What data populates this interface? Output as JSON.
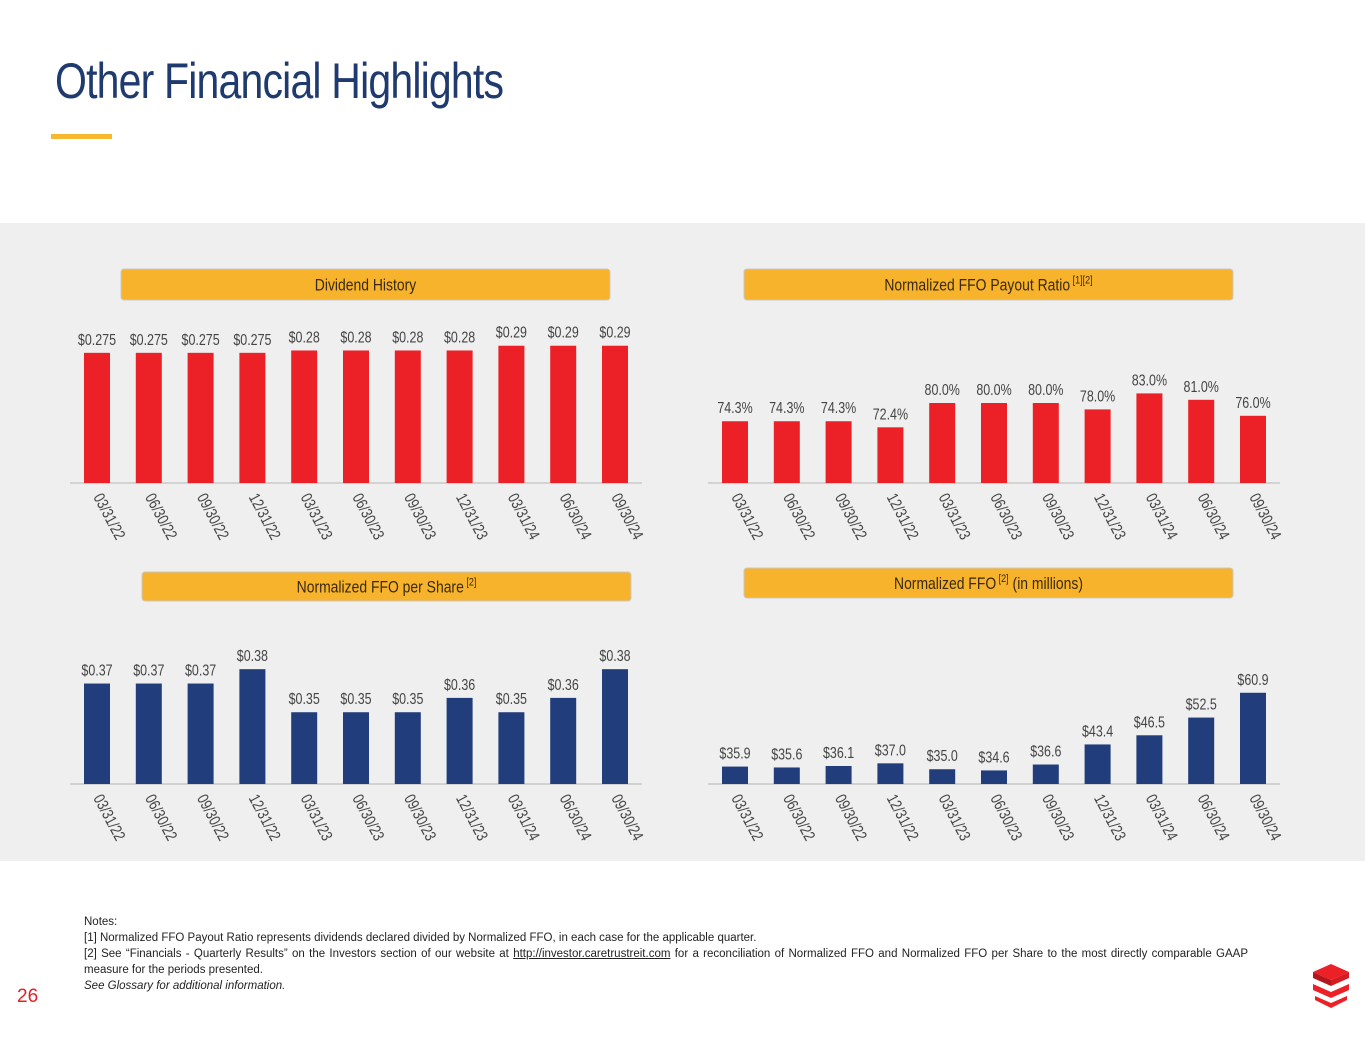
{
  "page": {
    "title": "Other Financial Highlights",
    "page_number": "26"
  },
  "colors": {
    "red": "#ec2127",
    "navy": "#223d7b",
    "gold": "#f7b32b",
    "title": "#1f3a6e"
  },
  "chart_data": [
    {
      "id": "dividend",
      "type": "bar",
      "title": "Dividend History",
      "sup": "",
      "suffix": "",
      "color": "red",
      "categories": [
        "03/31/22",
        "06/30/22",
        "09/30/22",
        "12/31/22",
        "03/31/23",
        "06/30/23",
        "09/30/23",
        "12/31/23",
        "03/31/24",
        "06/30/24",
        "09/30/24"
      ],
      "values": [
        0.275,
        0.275,
        0.275,
        0.275,
        0.28,
        0.28,
        0.28,
        0.28,
        0.29,
        0.29,
        0.29
      ],
      "labels": [
        "$0.275",
        "$0.275",
        "$0.275",
        "$0.275",
        "$0.28",
        "$0.28",
        "$0.28",
        "$0.28",
        "$0.29",
        "$0.29",
        "$0.29"
      ],
      "ylim": [
        0,
        0.3
      ]
    },
    {
      "id": "payout",
      "type": "bar",
      "title": "Normalized FFO Payout Ratio",
      "sup": "[1][2]",
      "suffix": "",
      "color": "red",
      "categories": [
        "03/31/22",
        "06/30/22",
        "09/30/22",
        "12/31/22",
        "03/31/23",
        "06/30/23",
        "09/30/23",
        "12/31/23",
        "03/31/24",
        "06/30/24",
        "09/30/24"
      ],
      "values": [
        74.3,
        74.3,
        74.3,
        72.4,
        80.0,
        80.0,
        80.0,
        78.0,
        83.0,
        81.0,
        76.0
      ],
      "labels": [
        "74.3%",
        "74.3%",
        "74.3%",
        "72.4%",
        "80.0%",
        "80.0%",
        "80.0%",
        "78.0%",
        "83.0%",
        "81.0%",
        "76.0%"
      ],
      "ylim": [
        55,
        85
      ]
    },
    {
      "id": "ffo_share",
      "type": "bar",
      "title": "Normalized FFO per Share",
      "sup": "[2]",
      "suffix": "",
      "color": "navy",
      "categories": [
        "03/31/22",
        "06/30/22",
        "09/30/22",
        "12/31/22",
        "03/31/23",
        "06/30/23",
        "09/30/23",
        "12/31/23",
        "03/31/24",
        "06/30/24",
        "09/30/24"
      ],
      "values": [
        0.37,
        0.37,
        0.37,
        0.38,
        0.35,
        0.35,
        0.35,
        0.36,
        0.35,
        0.36,
        0.38
      ],
      "labels": [
        "$0.37",
        "$0.37",
        "$0.37",
        "$0.38",
        "$0.35",
        "$0.35",
        "$0.35",
        "$0.36",
        "$0.35",
        "$0.36",
        "$0.38"
      ],
      "ylim": [
        0.3,
        0.385
      ]
    },
    {
      "id": "ffo",
      "type": "bar",
      "title": "Normalized FFO",
      "sup": "[2]",
      "suffix": "(in millions)",
      "color": "navy",
      "categories": [
        "03/31/22",
        "06/30/22",
        "09/30/22",
        "12/31/22",
        "03/31/23",
        "06/30/23",
        "09/30/23",
        "12/31/23",
        "03/31/24",
        "06/30/24",
        "09/30/24"
      ],
      "values": [
        35.9,
        35.6,
        36.1,
        37.0,
        35.0,
        34.6,
        36.6,
        43.4,
        46.5,
        52.5,
        60.9
      ],
      "labels": [
        "$35.9",
        "$35.6",
        "$36.1",
        "$37.0",
        "$35.0",
        "$34.6",
        "$36.6",
        "$43.4",
        "$46.5",
        "$52.5",
        "$60.9"
      ],
      "ylim": [
        30,
        61.5
      ]
    }
  ],
  "notes": {
    "heading": "Notes:",
    "note1": "[1] Normalized FFO Payout Ratio represents dividends declared divided by Normalized FFO, in each case for the applicable quarter.",
    "note2_pre": "[2] See “Financials - Quarterly Results” on the Investors section of our website at ",
    "note2_link": "http://investor.caretrustreit.com",
    "note2_post": " for a reconciliation of Normalized FFO and Normalized FFO per Share to the most directly comparable GAAP measure for the periods presented.",
    "glossary": "See Glossary for additional information."
  }
}
